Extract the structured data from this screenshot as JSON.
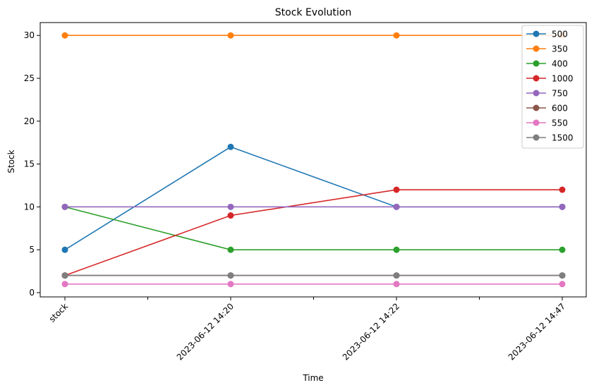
{
  "chart_data": {
    "type": "line",
    "title": "Stock Evolution",
    "xlabel": "Time",
    "ylabel": "Stock",
    "categories": [
      "stock",
      "2023-06-12 14:20",
      "2023-06-12 14:22",
      "2023-06-12 14:47"
    ],
    "ylim": [
      -0.5,
      31.5
    ],
    "yticks": [
      0,
      5,
      10,
      15,
      20,
      25,
      30
    ],
    "grid": false,
    "legend_position": "top-right",
    "series": [
      {
        "name": "500",
        "color": "#1f77b4",
        "values": [
          5,
          17,
          10,
          10
        ]
      },
      {
        "name": "350",
        "color": "#ff7f0e",
        "values": [
          30,
          30,
          30,
          30
        ]
      },
      {
        "name": "400",
        "color": "#2ca02c",
        "values": [
          10,
          5,
          5,
          5
        ]
      },
      {
        "name": "1000",
        "color": "#d62728",
        "values": [
          2,
          9,
          12,
          12
        ]
      },
      {
        "name": "750",
        "color": "#9467bd",
        "values": [
          10,
          10,
          10,
          10
        ]
      },
      {
        "name": "600",
        "color": "#8c564b",
        "values": [
          2,
          2,
          2,
          2
        ]
      },
      {
        "name": "550",
        "color": "#e377c2",
        "values": [
          1,
          1,
          1,
          1
        ]
      },
      {
        "name": "1500",
        "color": "#7f7f7f",
        "values": [
          2,
          2,
          2,
          2
        ]
      }
    ]
  }
}
